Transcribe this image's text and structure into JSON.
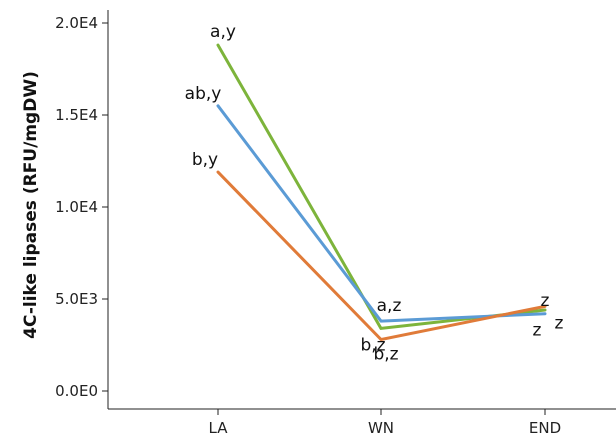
{
  "chart_data": {
    "type": "line",
    "title": "",
    "xlabel": "",
    "ylabel": "4C-like lipases (RFU/mgDW)",
    "categories": [
      "LA",
      "WN",
      "END"
    ],
    "ylim": [
      0,
      21000
    ],
    "y_ticks": [
      0,
      5000,
      10000,
      15000,
      20000
    ],
    "y_tick_labels": [
      "0.0E0",
      "5.0E3",
      "1.0E4",
      "1.5E4",
      "2.0E4"
    ],
    "grid": false,
    "legend": "none",
    "series": [
      {
        "color": "#7db43b",
        "values": [
          18800,
          3400,
          4400
        ],
        "labels": [
          "a,y",
          "b,z",
          "z"
        ]
      },
      {
        "color": "#5b9bd5",
        "values": [
          15500,
          3800,
          4200
        ],
        "labels": [
          "ab,y",
          "a,z",
          "z"
        ]
      },
      {
        "color": "#e07b39",
        "values": [
          11900,
          2800,
          4600
        ],
        "labels": [
          "b,y",
          "b,z",
          "z"
        ]
      }
    ]
  }
}
